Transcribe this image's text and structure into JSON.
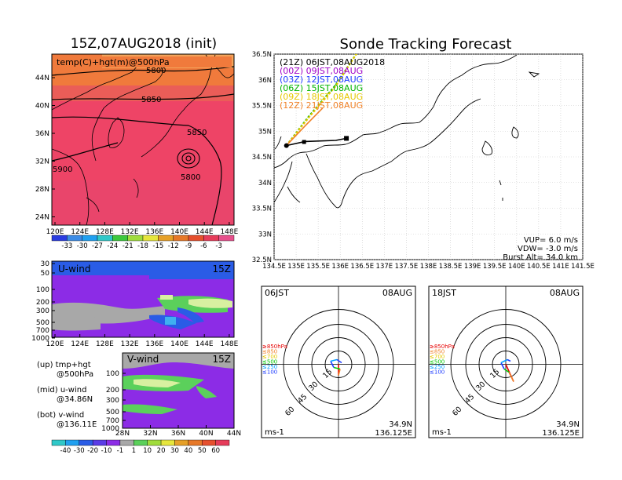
{
  "left_title": "15Z,07AUG2018 (init)",
  "right_title": "Sonde Tracking Forecast",
  "top_panel": {
    "label": "temp(C)+hgt(m)@500hPa",
    "contour_labels": [
      "5800",
      "5850",
      "5850",
      "5900",
      "5800"
    ],
    "lat_ticks": [
      "44N",
      "40N",
      "36N",
      "32N",
      "28N",
      "24N"
    ],
    "lon_ticks": [
      "120E",
      "124E",
      "128E",
      "132E",
      "136E",
      "140E",
      "144E",
      "148E"
    ],
    "colorbar": [
      "-33",
      "-30",
      "-27",
      "-24",
      "-21",
      "-18",
      "-15",
      "-12",
      "-9",
      "-6",
      "-3"
    ]
  },
  "u_panel": {
    "label": "U-wind",
    "time": "15Z",
    "p_ticks": [
      "30",
      "50",
      "100",
      "200",
      "300",
      "500",
      "700",
      "1000"
    ],
    "lon_ticks": [
      "120E",
      "124E",
      "128E",
      "132E",
      "136E",
      "140E",
      "144E",
      "148E"
    ]
  },
  "v_panel": {
    "label": "V-wind",
    "time": "15Z",
    "p_ticks": [
      "100",
      "200",
      "300",
      "500",
      "700",
      "1000"
    ],
    "lat_ticks": [
      "28N",
      "32N",
      "36N",
      "40N",
      "44N"
    ]
  },
  "wind_colorbar": [
    "-40",
    "-30",
    "-20",
    "-10",
    "-1",
    "1",
    "10",
    "20",
    "30",
    "40",
    "50",
    "60"
  ],
  "notes": [
    {
      "line1": "(up)  tmp+hgt",
      "line2": "@500hPa"
    },
    {
      "line1": "(mid)  u-wind",
      "line2": "@34.86N"
    },
    {
      "line1": "(bot)  v-wind",
      "line2": "@136.11E"
    }
  ],
  "track_map": {
    "legend": [
      {
        "text": "(21Z)  06JST,08AUG2018",
        "color": "#000000"
      },
      {
        "text": "(00Z)  09JST,08AUG",
        "color": "#a000c8"
      },
      {
        "text": "(03Z)  12JST,08AUG",
        "color": "#1e3cff"
      },
      {
        "text": "(06Z)  15JST,08AUG",
        "color": "#00b400"
      },
      {
        "text": "(09Z)  18JST,08AUG",
        "color": "#e6c800"
      },
      {
        "text": "(12Z)  21JST,08AUG",
        "color": "#f08228"
      }
    ],
    "lat_ticks": [
      "36.5N",
      "36N",
      "35.5N",
      "35N",
      "34.5N",
      "34N",
      "33.5N",
      "33N",
      "32.5N"
    ],
    "lon_ticks": [
      "134.5E",
      "135E",
      "135.5E",
      "136E",
      "136.5E",
      "137E",
      "137.5E",
      "138E",
      "138.5E",
      "139E",
      "139.5E",
      "140E",
      "140.5E",
      "141E",
      "141.5E"
    ],
    "vup": "VUP=  6.0  m/s",
    "vdw": "VDW=  -3.0  m/s",
    "burst": "Burst Alt=  34.0  km"
  },
  "hodographs": [
    {
      "time": "06JST",
      "date": "08AUG",
      "lat": "34.9N",
      "lon": "136.125E",
      "unit": "ms-1",
      "rings": [
        "15",
        "30",
        "45",
        "60"
      ],
      "levels": [
        "≥850hPa",
        "≤850",
        "≤700",
        "≤500",
        "≤250",
        "≤100"
      ]
    },
    {
      "time": "18JST",
      "date": "08AUG",
      "lat": "34.9N",
      "lon": "136.125E",
      "unit": "ms-1",
      "rings": [
        "15",
        "30",
        "45",
        "60"
      ],
      "levels": [
        "≥850hPa",
        "≤850",
        "≤700",
        "≤500",
        "≤250",
        "≤100"
      ]
    }
  ],
  "colors": {
    "level_colors": [
      "#e60000",
      "#f08228",
      "#e6c800",
      "#00c800",
      "#00a0ff",
      "#1e3cff"
    ]
  },
  "chart_data": [
    {
      "type": "heatmap",
      "title": "temp(C)+hgt(m)@500hPa",
      "xlim": [
        "120E",
        "148E"
      ],
      "ylim": [
        "24N",
        "44N"
      ],
      "colorbar": [
        -33,
        -30,
        -27,
        -24,
        -21,
        -18,
        -15,
        -12,
        -9,
        -6,
        -3
      ],
      "contours": [
        5800,
        5850,
        5900
      ]
    },
    {
      "type": "heatmap",
      "title": "U-wind",
      "xlim": [
        "120E",
        "148E"
      ],
      "ylim_hPa": [
        1000,
        30
      ]
    },
    {
      "type": "heatmap",
      "title": "V-wind",
      "xlim": [
        "28N",
        "44N"
      ],
      "ylim_hPa": [
        1000,
        100
      ],
      "colorbar": [
        -40,
        -30,
        -20,
        -10,
        -1,
        1,
        10,
        20,
        30,
        40,
        50,
        60
      ]
    },
    {
      "type": "line",
      "title": "Sonde Tracking Forecast",
      "xlim": [
        134.5,
        141.5
      ],
      "ylim": [
        32.5,
        36.5
      ],
      "series": [
        {
          "name": "(21Z) 06JST,08AUG2018",
          "x": [
            134.78,
            135.2,
            135.9,
            136.14
          ],
          "y": [
            34.72,
            34.8,
            34.82,
            34.86
          ]
        },
        {
          "name": "(06Z) 15JST,08AUG",
          "x": [
            134.78,
            135.3,
            135.9,
            136.4
          ],
          "y": [
            34.72,
            35.3,
            35.9,
            36.55
          ]
        },
        {
          "name": "(09Z) 18JST,08AUG",
          "x": [
            134.78,
            135.3,
            135.9,
            136.4
          ],
          "y": [
            34.72,
            35.28,
            35.88,
            36.55
          ]
        },
        {
          "name": "(12Z) 21JST,08AUG",
          "x": [
            134.78,
            135.2,
            135.6
          ],
          "y": [
            34.72,
            35.1,
            35.45
          ]
        }
      ]
    }
  ]
}
